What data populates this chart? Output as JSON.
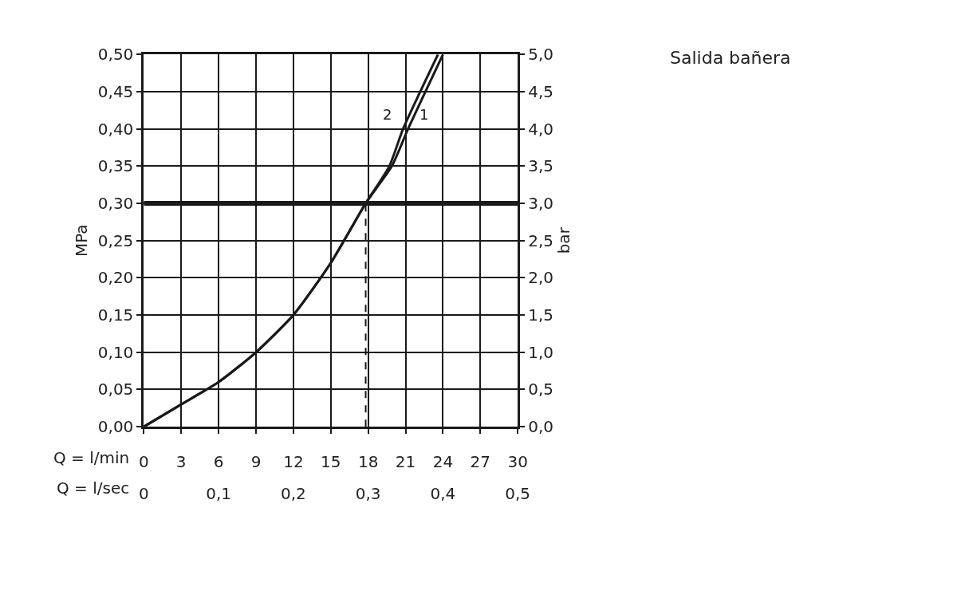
{
  "chart_data": {
    "type": "line",
    "title": "Salida bañera",
    "xlabel": "Q = l/min",
    "x2label": "Q = l/sec",
    "ylabel": "MPa",
    "y2label": "bar",
    "series": [
      {
        "name": "1",
        "color": "#1a1a1a",
        "x": [
          0,
          3,
          6,
          9,
          12,
          15,
          17.8,
          19.9,
          21.2,
          24
        ],
        "values": [
          0,
          0.03,
          0.06,
          0.1,
          0.15,
          0.22,
          0.3,
          0.35,
          0.4,
          0.5
        ]
      },
      {
        "name": "2",
        "color": "#1a1a1a",
        "x": [
          0,
          3,
          6,
          9,
          12,
          15,
          17.8,
          19.7,
          20.8,
          23.6
        ],
        "values": [
          0,
          0.03,
          0.06,
          0.1,
          0.15,
          0.22,
          0.3,
          0.35,
          0.4,
          0.5
        ]
      }
    ],
    "xlim": [
      0,
      30
    ],
    "xticks": [
      0,
      3,
      6,
      9,
      12,
      15,
      18,
      21,
      24,
      27,
      30
    ],
    "x2lim": [
      0,
      0.5
    ],
    "x2ticks": [
      0,
      {
        "value": 0.1,
        "label": "0,1"
      },
      {
        "value": 0.2,
        "label": "0,2"
      },
      {
        "value": 0.3,
        "label": "0,3"
      },
      {
        "value": 0.4,
        "label": "0,4"
      },
      {
        "value": 0.5,
        "label": "0,5"
      }
    ],
    "ylim": [
      0,
      0.5
    ],
    "yticks": [
      {
        "value": 0,
        "label": "0,00"
      },
      {
        "value": 0.05,
        "label": "0,05"
      },
      {
        "value": 0.1,
        "label": "0,10"
      },
      {
        "value": 0.15,
        "label": "0,15"
      },
      {
        "value": 0.2,
        "label": "0,20"
      },
      {
        "value": 0.25,
        "label": "0,25"
      },
      {
        "value": 0.3,
        "label": "0,30"
      },
      {
        "value": 0.35,
        "label": "0,35"
      },
      {
        "value": 0.4,
        "label": "0,40"
      },
      {
        "value": 0.45,
        "label": "0,45"
      },
      {
        "value": 0.5,
        "label": "0,50"
      }
    ],
    "y2lim": [
      0,
      5
    ],
    "y2ticks": [
      {
        "value": 0,
        "label": "0,0"
      },
      {
        "value": 0.5,
        "label": "0,5"
      },
      {
        "value": 1,
        "label": "1,0"
      },
      {
        "value": 1.5,
        "label": "1,5"
      },
      {
        "value": 2,
        "label": "2,0"
      },
      {
        "value": 2.5,
        "label": "2,5"
      },
      {
        "value": 3,
        "label": "3,0"
      },
      {
        "value": 3.5,
        "label": "3,5"
      },
      {
        "value": 4,
        "label": "4,0"
      },
      {
        "value": 4.5,
        "label": "4,5"
      },
      {
        "value": 5,
        "label": "5,0"
      }
    ],
    "ref_lines": [
      {
        "axis": "y",
        "value": 0.3,
        "color": "#1a1a1a",
        "line_style": "solid"
      },
      {
        "axis": "x",
        "value": 17.8,
        "color": "#1a1a1a",
        "line_style": "dashed"
      }
    ],
    "grid": true,
    "legend": false,
    "marker": "none",
    "line_style": "solid"
  }
}
